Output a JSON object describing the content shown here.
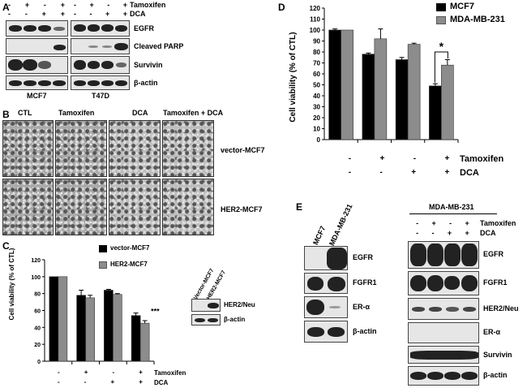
{
  "panels": {
    "a": "A",
    "b": "B",
    "c": "C",
    "d": "D",
    "e": "E"
  },
  "panel_a": {
    "signs": [
      [
        "-",
        "+",
        "-",
        "+"
      ],
      [
        "-",
        "-",
        "+",
        "+"
      ]
    ],
    "signs_t47d": [
      [
        "-",
        "+",
        "-",
        "+"
      ],
      [
        "-",
        "-",
        "+",
        "+"
      ]
    ],
    "treatments": [
      "Tamoxifen",
      "DCA"
    ],
    "proteins": [
      "EGFR",
      "Cleaved PARP",
      "Survivin",
      "β-actin"
    ],
    "cell_lines": [
      "MCF7",
      "T47D"
    ]
  },
  "panel_b": {
    "columns": [
      "CTL",
      "Tamoxifen",
      "DCA",
      "Tamoxifen + DCA"
    ],
    "rows": [
      "vector-MCF7",
      "HER2-MCF7"
    ]
  },
  "panel_c": {
    "legend": [
      "vector-MCF7",
      "HER2-MCF7"
    ],
    "ylabel": "Cell viability (% of CTL)",
    "yticks": [
      "0",
      "20",
      "40",
      "60",
      "80",
      "100",
      "120"
    ],
    "significance": "***",
    "signs": [
      [
        "-",
        "+",
        "-",
        "+"
      ],
      [
        "-",
        "-",
        "+",
        "+"
      ]
    ],
    "treatments": [
      "Tamoxifen",
      "DCA"
    ],
    "blot_headers": [
      "Vector-MCF7",
      "HER2-MCF7"
    ],
    "blot_proteins": [
      "HER2/Neu",
      "β-actin"
    ],
    "colors": {
      "vector": "#000000",
      "her2": "#8c8c8c"
    }
  },
  "panel_d": {
    "legend": [
      "MCF7",
      "MDA-MB-231"
    ],
    "ylabel": "Cell viability (% of CTL)",
    "yticks": [
      "0",
      "10",
      "20",
      "30",
      "40",
      "50",
      "60",
      "70",
      "80",
      "90",
      "100",
      "110",
      "120"
    ],
    "significance": "*",
    "signs": [
      [
        "-",
        "+",
        "-",
        "+"
      ],
      [
        "-",
        "-",
        "+",
        "+"
      ]
    ],
    "treatments": [
      "Tamoxifen",
      "DCA"
    ],
    "colors": {
      "mcf7": "#000000",
      "mda": "#8c8c8c"
    }
  },
  "panel_e": {
    "left_headers": [
      "MCF7",
      "MDA-MB-231"
    ],
    "left_proteins": [
      "EGFR",
      "FGFR1",
      "ER-α",
      "β-actin"
    ],
    "right_title": "MDA-MB-231",
    "signs": [
      [
        "-",
        "+",
        "-",
        "+"
      ],
      [
        "-",
        "-",
        "+",
        "+"
      ]
    ],
    "treatments": [
      "Tamoxifen",
      "DCA"
    ],
    "right_proteins": [
      "EGFR",
      "FGFR1",
      "HER2/Neu",
      "ER-α",
      "Survivin",
      "β-actin"
    ]
  },
  "chart_data": [
    {
      "type": "bar",
      "ylabel": "Cell viability (% of CTL)",
      "ylim": [
        0,
        120
      ],
      "categories": [
        "CTL",
        "Tamoxifen",
        "DCA",
        "Tamoxifen + DCA"
      ],
      "series": [
        {
          "name": "vector-MCF7",
          "values": [
            100,
            78,
            84,
            54
          ],
          "errors": [
            0,
            6,
            1,
            3
          ]
        },
        {
          "name": "HER2-MCF7",
          "values": [
            100,
            75,
            79,
            45
          ],
          "errors": [
            0,
            3,
            1,
            3
          ]
        }
      ]
    },
    {
      "type": "bar",
      "ylabel": "Cell viability (% of CTL)",
      "ylim": [
        0,
        120
      ],
      "categories": [
        "CTL",
        "Tamoxifen",
        "DCA",
        "Tamoxifen + DCA"
      ],
      "series": [
        {
          "name": "MCF7",
          "values": [
            100,
            78,
            73,
            49
          ],
          "errors": [
            1,
            1,
            2,
            2
          ]
        },
        {
          "name": "MDA-MB-231",
          "values": [
            100,
            92,
            87,
            68
          ],
          "errors": [
            0,
            9,
            1,
            5
          ]
        }
      ]
    }
  ]
}
